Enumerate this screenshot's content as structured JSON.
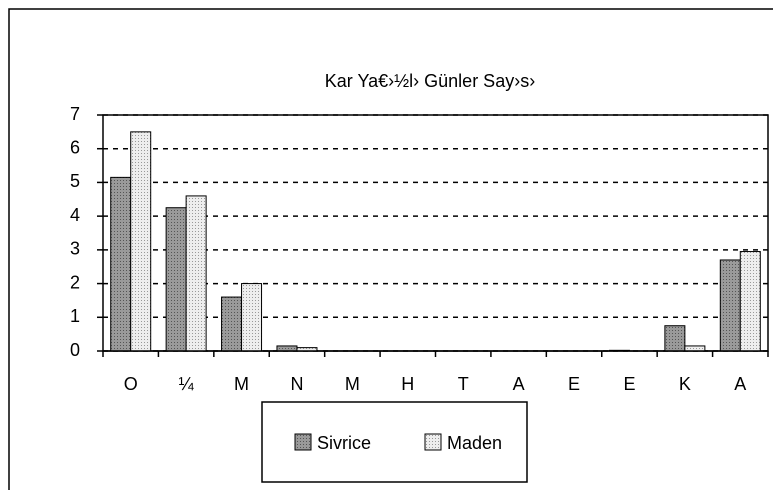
{
  "chart_data": {
    "type": "bar",
    "title": "Kar Ya€›½l› Günler Say›s›",
    "categories": [
      "O",
      "¼",
      "M",
      "N",
      "M",
      "H",
      "T",
      "A",
      "E",
      "E",
      "K",
      "A"
    ],
    "series": [
      {
        "name": "Sivrice",
        "color": "#8c8c8c",
        "values": [
          5.15,
          4.25,
          1.6,
          0.15,
          0,
          0,
          0,
          0,
          0,
          0.02,
          0.75,
          2.7
        ]
      },
      {
        "name": "Maden",
        "color": "#dcdcdc",
        "values": [
          6.5,
          4.6,
          2.0,
          0.1,
          0,
          0,
          0,
          0,
          0,
          0,
          0.15,
          2.95
        ]
      }
    ],
    "ylim": [
      0,
      7
    ],
    "yticks": [
      0,
      1,
      2,
      3,
      4,
      5,
      6,
      7
    ],
    "grid": true,
    "legend": "bottom"
  }
}
